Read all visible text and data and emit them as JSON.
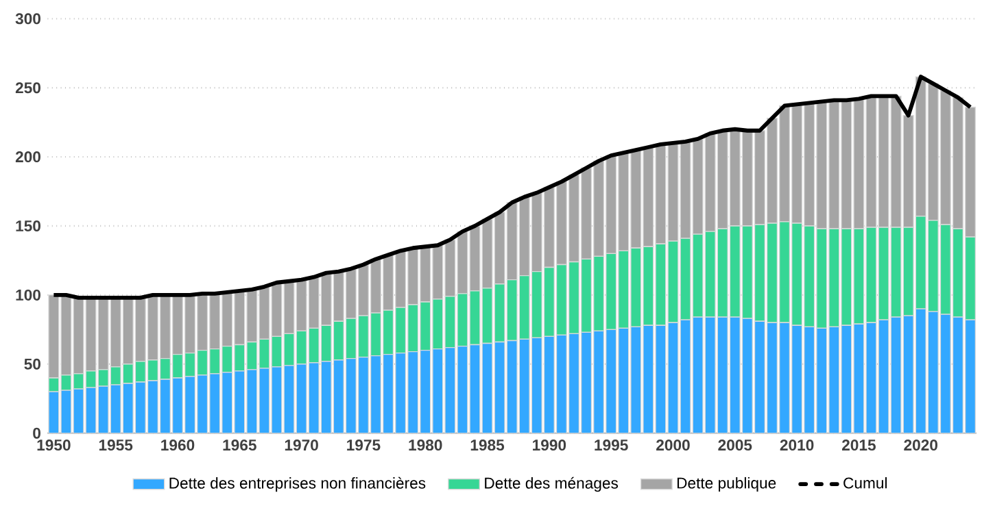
{
  "chart_data": {
    "type": "bar",
    "stacked": true,
    "x": [
      1950,
      1951,
      1952,
      1953,
      1954,
      1955,
      1956,
      1957,
      1958,
      1959,
      1960,
      1961,
      1962,
      1963,
      1964,
      1965,
      1966,
      1967,
      1968,
      1969,
      1970,
      1971,
      1972,
      1973,
      1974,
      1975,
      1976,
      1977,
      1978,
      1979,
      1980,
      1981,
      1982,
      1983,
      1984,
      1985,
      1986,
      1987,
      1988,
      1989,
      1990,
      1991,
      1992,
      1993,
      1994,
      1995,
      1996,
      1997,
      1998,
      1999,
      2000,
      2001,
      2002,
      2003,
      2004,
      2005,
      2006,
      2007,
      2008,
      2009,
      2010,
      2011,
      2012,
      2013,
      2014,
      2015,
      2016,
      2017,
      2018,
      2019,
      2020,
      2021,
      2022,
      2023,
      2024
    ],
    "series": [
      {
        "name": "Dette des entreprises non financières",
        "color": "#33a8ff",
        "values": [
          30,
          31,
          32,
          33,
          34,
          35,
          36,
          37,
          38,
          39,
          40,
          41,
          42,
          43,
          44,
          45,
          46,
          47,
          48,
          49,
          50,
          51,
          52,
          53,
          54,
          55,
          56,
          57,
          58,
          59,
          60,
          61,
          62,
          63,
          64,
          65,
          66,
          67,
          68,
          69,
          70,
          71,
          72,
          73,
          74,
          75,
          76,
          77,
          78,
          78,
          80,
          82,
          84,
          84,
          84,
          84,
          83,
          81,
          80,
          80,
          78,
          77,
          76,
          77,
          78,
          79,
          80,
          82,
          84,
          85,
          90,
          88,
          86,
          84,
          82
        ]
      },
      {
        "name": "Dette des ménages",
        "color": "#36d695",
        "values": [
          10,
          11,
          11,
          12,
          12,
          13,
          14,
          15,
          15,
          15,
          17,
          17,
          18,
          18,
          19,
          19,
          20,
          21,
          22,
          23,
          24,
          25,
          26,
          28,
          29,
          30,
          31,
          32,
          33,
          34,
          35,
          36,
          37,
          38,
          39,
          40,
          42,
          44,
          46,
          48,
          50,
          51,
          52,
          53,
          54,
          55,
          56,
          57,
          57,
          59,
          59,
          59,
          60,
          62,
          64,
          66,
          67,
          70,
          72,
          73,
          74,
          73,
          72,
          71,
          70,
          69,
          69,
          67,
          65,
          64,
          67,
          66,
          65,
          64,
          60
        ]
      },
      {
        "name": "Dette publique",
        "color": "#a5a5a5",
        "values": [
          60,
          58,
          55,
          53,
          52,
          50,
          48,
          46,
          47,
          46,
          43,
          42,
          41,
          40,
          39,
          39,
          38,
          38,
          39,
          38,
          37,
          37,
          38,
          36,
          36,
          37,
          39,
          40,
          41,
          41,
          40,
          39,
          41,
          45,
          47,
          50,
          52,
          56,
          57,
          57,
          58,
          60,
          63,
          66,
          69,
          71,
          71,
          71,
          72,
          72,
          71,
          70,
          69,
          71,
          71,
          70,
          69,
          68,
          76,
          84,
          86,
          89,
          92,
          93,
          93,
          94,
          95,
          95,
          95,
          81,
          101,
          99,
          97,
          95,
          94
        ]
      },
      {
        "name": "Cumul",
        "type": "line",
        "color": "#000000",
        "marker": "none",
        "line_style": "solid",
        "values": [
          100,
          100,
          98,
          98,
          98,
          98,
          98,
          98,
          100,
          100,
          100,
          100,
          101,
          101,
          102,
          103,
          104,
          106,
          109,
          110,
          111,
          113,
          116,
          117,
          119,
          122,
          126,
          129,
          132,
          134,
          135,
          136,
          140,
          146,
          150,
          155,
          160,
          167,
          171,
          174,
          178,
          182,
          187,
          192,
          197,
          201,
          203,
          205,
          207,
          209,
          210,
          211,
          213,
          217,
          219,
          220,
          219,
          219,
          228,
          237,
          238,
          239,
          240,
          241,
          241,
          242,
          244,
          244,
          244,
          230,
          258,
          253,
          248,
          243,
          236
        ]
      }
    ],
    "xlim": [
      1949.5,
      2024.5
    ],
    "xticks": [
      1950,
      1955,
      1960,
      1965,
      1970,
      1975,
      1980,
      1985,
      1990,
      1995,
      2000,
      2005,
      2010,
      2015,
      2020
    ],
    "ylim": [
      0,
      300
    ],
    "yticks": [
      0,
      50,
      100,
      150,
      200,
      250,
      300
    ],
    "grid": "y",
    "legend": "bottom"
  }
}
